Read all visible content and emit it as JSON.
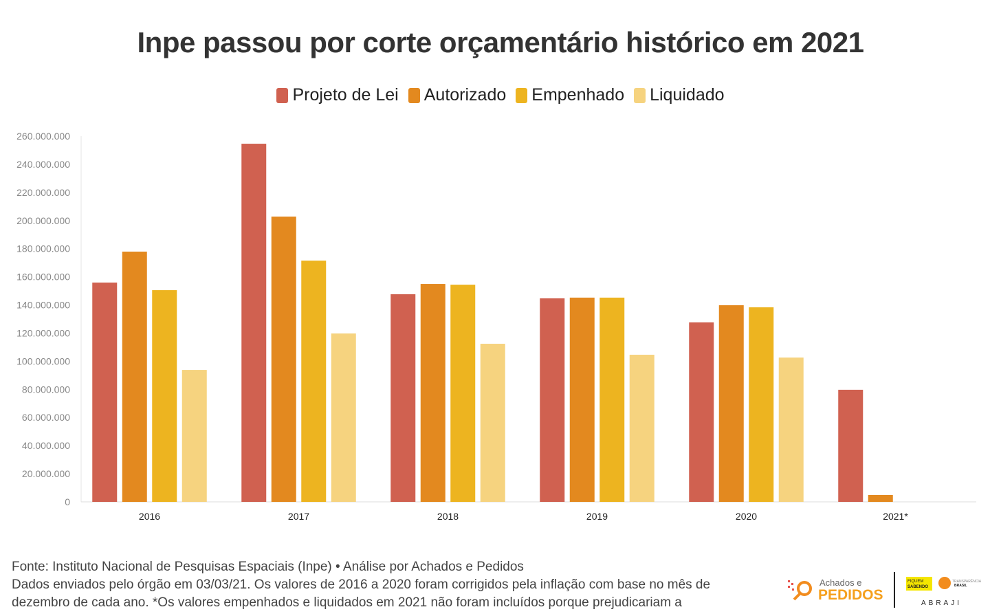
{
  "chart_data": {
    "type": "bar",
    "title": "Inpe passou por corte orçamentário histórico em 2021",
    "categories": [
      "2016",
      "2017",
      "2018",
      "2019",
      "2020",
      "2021*"
    ],
    "series": [
      {
        "name": "Projeto de Lei",
        "color": "#d06150",
        "values": [
          155900000,
          254600000,
          147600000,
          144700000,
          127600000,
          79700000
        ]
      },
      {
        "name": "Autorizado",
        "color": "#e3891f",
        "values": [
          177900000,
          202800000,
          154900000,
          145200000,
          139800000,
          4900000
        ]
      },
      {
        "name": "Empenhado",
        "color": "#edb420",
        "values": [
          150500000,
          171500000,
          154400000,
          145200000,
          138300000,
          null
        ]
      },
      {
        "name": "Liquidado",
        "color": "#f6d37f",
        "values": [
          93800000,
          119700000,
          112400000,
          104600000,
          102600000,
          null
        ]
      }
    ],
    "ylim": [
      0,
      260000000
    ],
    "yticks": [
      "0",
      "20.000.000",
      "40.000.000",
      "60.000.000",
      "80.000.000",
      "100.000.000",
      "120.000.000",
      "140.000.000",
      "160.000.000",
      "180.000.000",
      "200.000.000",
      "220.000.000",
      "240.000.000",
      "260.000.000"
    ],
    "xlabel": "",
    "ylabel": "",
    "legend": "top-center",
    "grid": false
  },
  "footer": {
    "source": "Fonte: Instituto Nacional de Pesquisas Espaciais (Inpe) • Análise por Achados e Pedidos",
    "note": "Dados enviados pelo órgão em 03/03/21. Os valores de 2016 a 2020 foram corrigidos pela inflação com base no mês de dezembro de cada ano. *Os valores empenhados e liquidados em 2021 não foram incluídos porque prejudicariam a"
  },
  "logos": {
    "achados_top": "Achados e",
    "achados_bottom": "PEDIDOS",
    "fiquem": "FIQUEM SABENDO",
    "transparencia": "TRANSPARÊNCIA BRASIL",
    "abraji": "ABRAJI"
  }
}
